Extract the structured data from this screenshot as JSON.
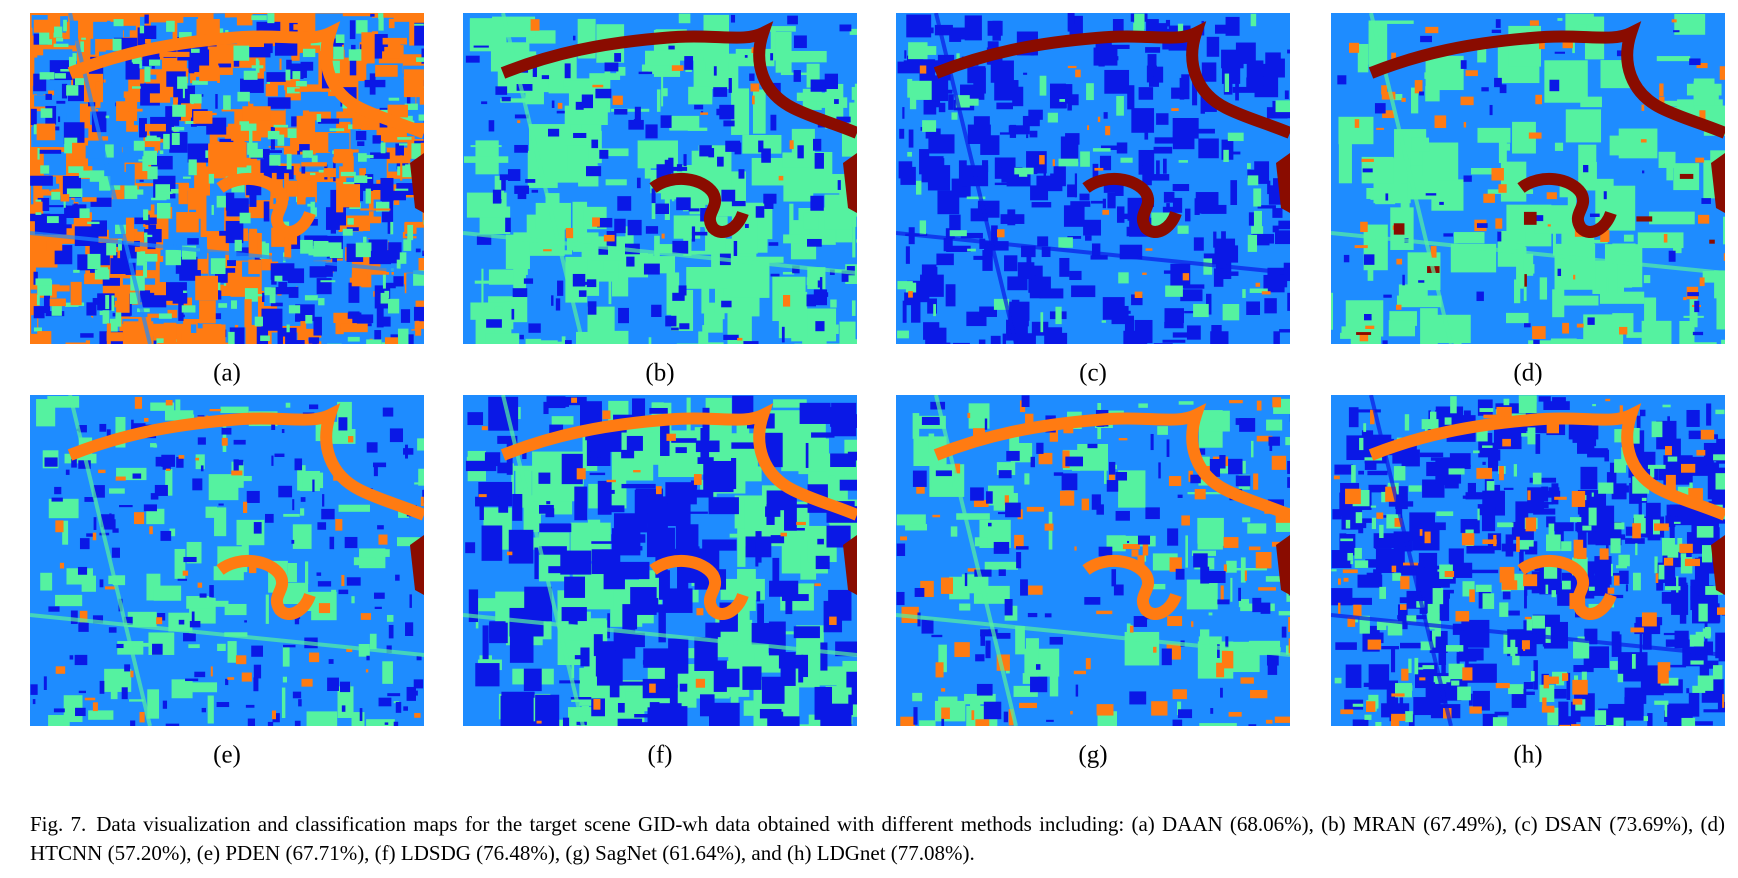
{
  "panels": [
    {
      "label": "(a)"
    },
    {
      "label": "(b)"
    },
    {
      "label": "(c)"
    },
    {
      "label": "(d)"
    },
    {
      "label": "(e)"
    },
    {
      "label": "(f)"
    },
    {
      "label": "(g)"
    },
    {
      "label": "(h)"
    }
  ],
  "caption": {
    "prefix": "Fig. 7.",
    "text": "Data visualization and classification maps for the target scene GID-wh data obtained with different methods including: (a) DAAN (68.06%), (b) MRAN (67.49%), (c) DSAN (73.69%), (d) HTCNN (57.20%), (e) PDEN (67.71%), (f) LDSDG (76.48%), (g) SagNet (61.64%), and (h) LDGnet (77.08%)."
  }
}
